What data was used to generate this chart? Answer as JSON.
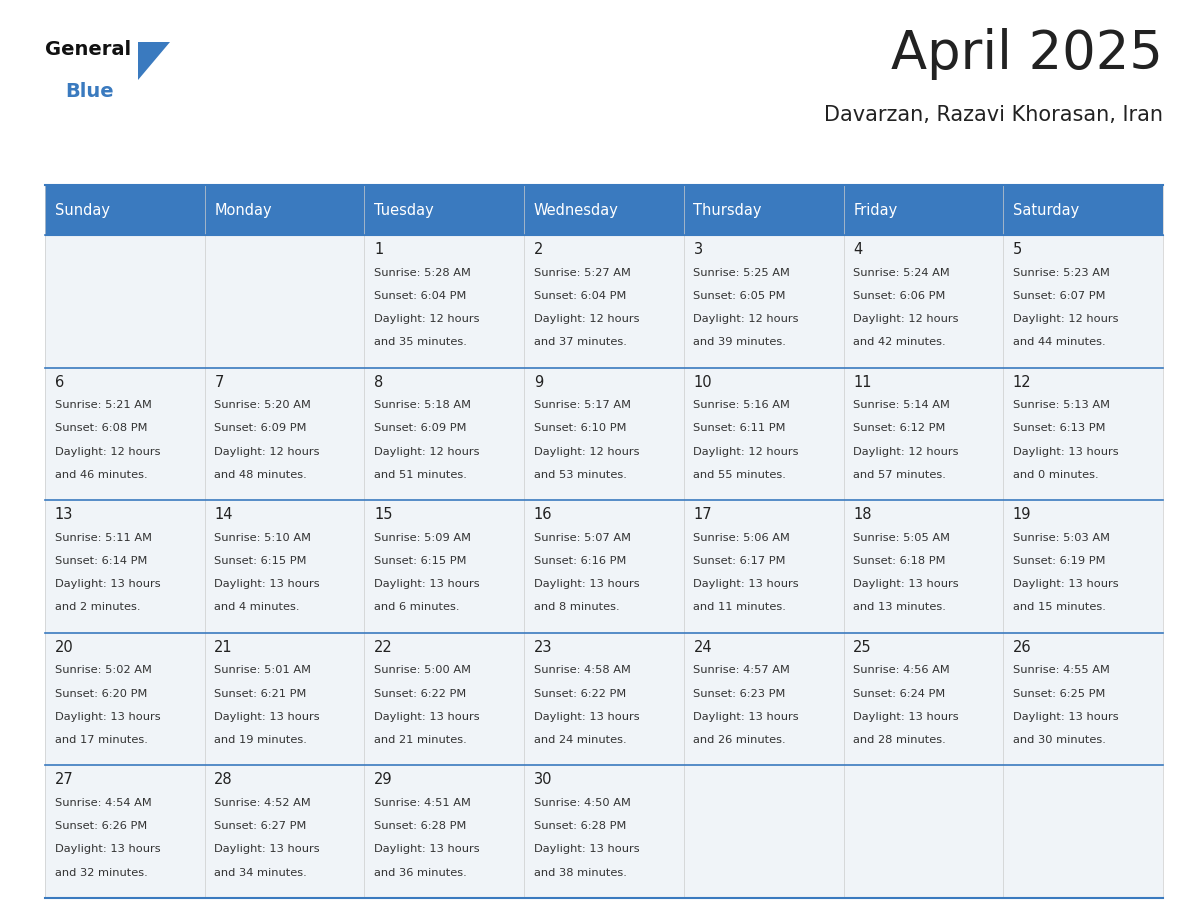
{
  "title": "April 2025",
  "subtitle": "Davarzan, Razavi Khorasan, Iran",
  "header_color": "#3a7abf",
  "header_text_color": "#ffffff",
  "cell_bg_even": "#f0f4f8",
  "cell_bg_odd": "#f0f4f8",
  "border_color": "#3a7abf",
  "grid_line_color": "#cccccc",
  "day_headers": [
    "Sunday",
    "Monday",
    "Tuesday",
    "Wednesday",
    "Thursday",
    "Friday",
    "Saturday"
  ],
  "days": [
    {
      "day": 1,
      "col": 2,
      "row": 0,
      "sunrise": "5:28 AM",
      "sunset": "6:04 PM",
      "daylight_hours": 12,
      "daylight_minutes": 35
    },
    {
      "day": 2,
      "col": 3,
      "row": 0,
      "sunrise": "5:27 AM",
      "sunset": "6:04 PM",
      "daylight_hours": 12,
      "daylight_minutes": 37
    },
    {
      "day": 3,
      "col": 4,
      "row": 0,
      "sunrise": "5:25 AM",
      "sunset": "6:05 PM",
      "daylight_hours": 12,
      "daylight_minutes": 39
    },
    {
      "day": 4,
      "col": 5,
      "row": 0,
      "sunrise": "5:24 AM",
      "sunset": "6:06 PM",
      "daylight_hours": 12,
      "daylight_minutes": 42
    },
    {
      "day": 5,
      "col": 6,
      "row": 0,
      "sunrise": "5:23 AM",
      "sunset": "6:07 PM",
      "daylight_hours": 12,
      "daylight_minutes": 44
    },
    {
      "day": 6,
      "col": 0,
      "row": 1,
      "sunrise": "5:21 AM",
      "sunset": "6:08 PM",
      "daylight_hours": 12,
      "daylight_minutes": 46
    },
    {
      "day": 7,
      "col": 1,
      "row": 1,
      "sunrise": "5:20 AM",
      "sunset": "6:09 PM",
      "daylight_hours": 12,
      "daylight_minutes": 48
    },
    {
      "day": 8,
      "col": 2,
      "row": 1,
      "sunrise": "5:18 AM",
      "sunset": "6:09 PM",
      "daylight_hours": 12,
      "daylight_minutes": 51
    },
    {
      "day": 9,
      "col": 3,
      "row": 1,
      "sunrise": "5:17 AM",
      "sunset": "6:10 PM",
      "daylight_hours": 12,
      "daylight_minutes": 53
    },
    {
      "day": 10,
      "col": 4,
      "row": 1,
      "sunrise": "5:16 AM",
      "sunset": "6:11 PM",
      "daylight_hours": 12,
      "daylight_minutes": 55
    },
    {
      "day": 11,
      "col": 5,
      "row": 1,
      "sunrise": "5:14 AM",
      "sunset": "6:12 PM",
      "daylight_hours": 12,
      "daylight_minutes": 57
    },
    {
      "day": 12,
      "col": 6,
      "row": 1,
      "sunrise": "5:13 AM",
      "sunset": "6:13 PM",
      "daylight_hours": 13,
      "daylight_minutes": 0
    },
    {
      "day": 13,
      "col": 0,
      "row": 2,
      "sunrise": "5:11 AM",
      "sunset": "6:14 PM",
      "daylight_hours": 13,
      "daylight_minutes": 2
    },
    {
      "day": 14,
      "col": 1,
      "row": 2,
      "sunrise": "5:10 AM",
      "sunset": "6:15 PM",
      "daylight_hours": 13,
      "daylight_minutes": 4
    },
    {
      "day": 15,
      "col": 2,
      "row": 2,
      "sunrise": "5:09 AM",
      "sunset": "6:15 PM",
      "daylight_hours": 13,
      "daylight_minutes": 6
    },
    {
      "day": 16,
      "col": 3,
      "row": 2,
      "sunrise": "5:07 AM",
      "sunset": "6:16 PM",
      "daylight_hours": 13,
      "daylight_minutes": 8
    },
    {
      "day": 17,
      "col": 4,
      "row": 2,
      "sunrise": "5:06 AM",
      "sunset": "6:17 PM",
      "daylight_hours": 13,
      "daylight_minutes": 11
    },
    {
      "day": 18,
      "col": 5,
      "row": 2,
      "sunrise": "5:05 AM",
      "sunset": "6:18 PM",
      "daylight_hours": 13,
      "daylight_minutes": 13
    },
    {
      "day": 19,
      "col": 6,
      "row": 2,
      "sunrise": "5:03 AM",
      "sunset": "6:19 PM",
      "daylight_hours": 13,
      "daylight_minutes": 15
    },
    {
      "day": 20,
      "col": 0,
      "row": 3,
      "sunrise": "5:02 AM",
      "sunset": "6:20 PM",
      "daylight_hours": 13,
      "daylight_minutes": 17
    },
    {
      "day": 21,
      "col": 1,
      "row": 3,
      "sunrise": "5:01 AM",
      "sunset": "6:21 PM",
      "daylight_hours": 13,
      "daylight_minutes": 19
    },
    {
      "day": 22,
      "col": 2,
      "row": 3,
      "sunrise": "5:00 AM",
      "sunset": "6:22 PM",
      "daylight_hours": 13,
      "daylight_minutes": 21
    },
    {
      "day": 23,
      "col": 3,
      "row": 3,
      "sunrise": "4:58 AM",
      "sunset": "6:22 PM",
      "daylight_hours": 13,
      "daylight_minutes": 24
    },
    {
      "day": 24,
      "col": 4,
      "row": 3,
      "sunrise": "4:57 AM",
      "sunset": "6:23 PM",
      "daylight_hours": 13,
      "daylight_minutes": 26
    },
    {
      "day": 25,
      "col": 5,
      "row": 3,
      "sunrise": "4:56 AM",
      "sunset": "6:24 PM",
      "daylight_hours": 13,
      "daylight_minutes": 28
    },
    {
      "day": 26,
      "col": 6,
      "row": 3,
      "sunrise": "4:55 AM",
      "sunset": "6:25 PM",
      "daylight_hours": 13,
      "daylight_minutes": 30
    },
    {
      "day": 27,
      "col": 0,
      "row": 4,
      "sunrise": "4:54 AM",
      "sunset": "6:26 PM",
      "daylight_hours": 13,
      "daylight_minutes": 32
    },
    {
      "day": 28,
      "col": 1,
      "row": 4,
      "sunrise": "4:52 AM",
      "sunset": "6:27 PM",
      "daylight_hours": 13,
      "daylight_minutes": 34
    },
    {
      "day": 29,
      "col": 2,
      "row": 4,
      "sunrise": "4:51 AM",
      "sunset": "6:28 PM",
      "daylight_hours": 13,
      "daylight_minutes": 36
    },
    {
      "day": 30,
      "col": 3,
      "row": 4,
      "sunrise": "4:50 AM",
      "sunset": "6:28 PM",
      "daylight_hours": 13,
      "daylight_minutes": 38
    }
  ],
  "num_rows": 5,
  "num_cols": 7,
  "text_color": "#222222",
  "small_text_color": "#333333",
  "logo_general_color": "#111111",
  "logo_blue_color": "#3a7abf",
  "logo_triangle_color": "#3a7abf"
}
